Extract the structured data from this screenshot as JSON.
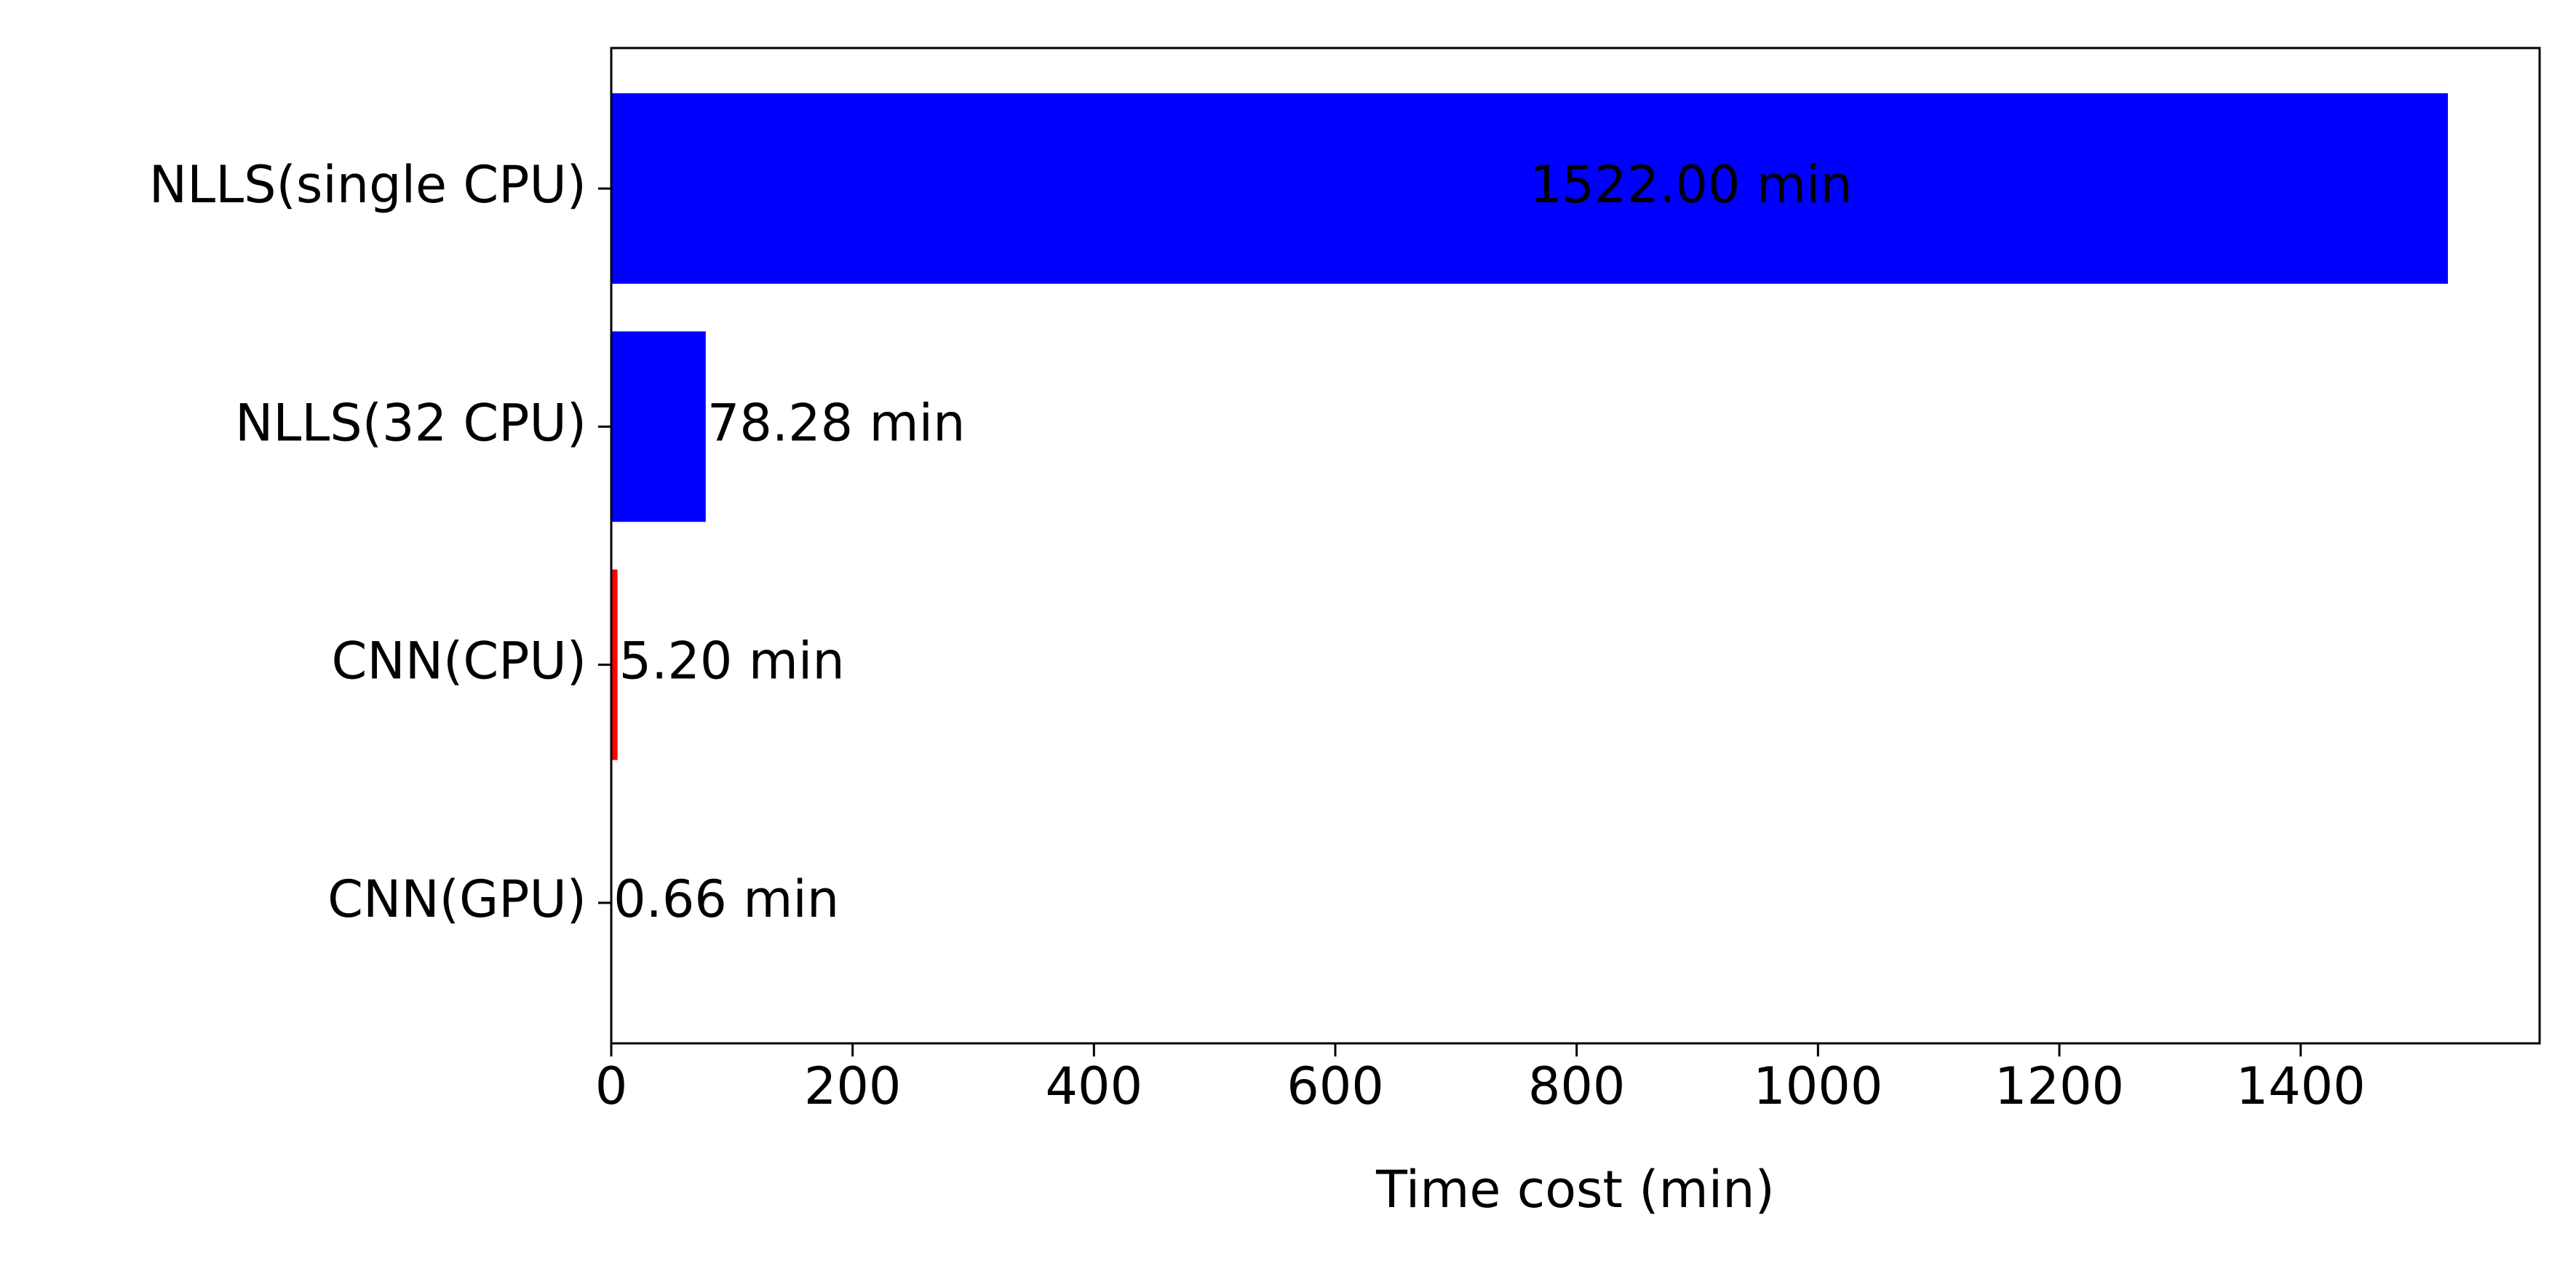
{
  "chart_data": {
    "type": "barh",
    "xlabel": "Time cost (min)",
    "categories": [
      "NLLS(single CPU)",
      "NLLS(32 CPU)",
      "CNN(CPU)",
      "CNN(GPU)"
    ],
    "values": [
      1522.0,
      78.28,
      5.2,
      0.66
    ],
    "value_labels": [
      "1522.00 min",
      "78.28 min",
      "5.20 min",
      "0.66 min"
    ],
    "colors": [
      "#0000ff",
      "#0000ff",
      "#ff0000",
      "#ff0000"
    ],
    "xlim": [
      0,
      1598
    ],
    "xticks": [
      0,
      200,
      400,
      600,
      800,
      1000,
      1200,
      1400
    ],
    "grid": false
  }
}
